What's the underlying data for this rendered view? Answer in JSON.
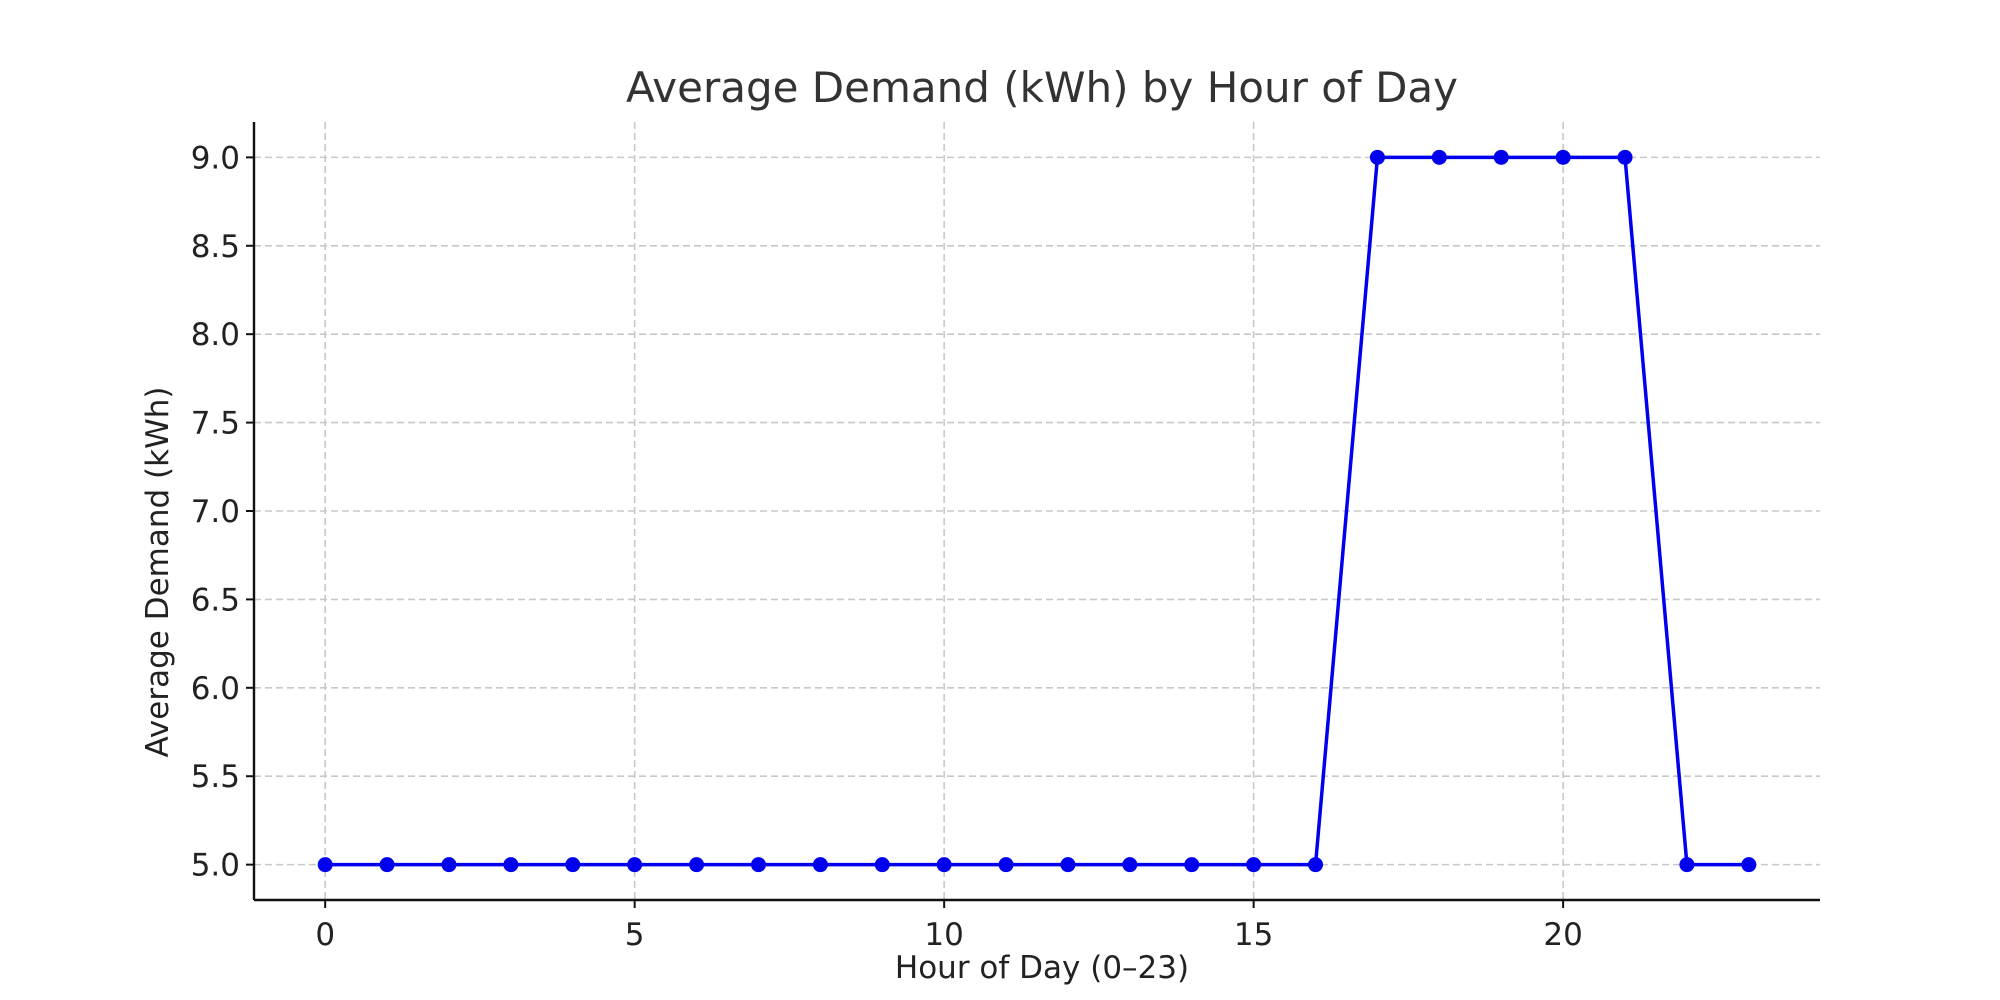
{
  "chart_data": {
    "type": "line",
    "title": "Average Demand (kWh) by Hour of Day",
    "xlabel": "Hour of Day (0–23)",
    "ylabel": "Average Demand (kWh)",
    "x": [
      0,
      1,
      2,
      3,
      4,
      5,
      6,
      7,
      8,
      9,
      10,
      11,
      12,
      13,
      14,
      15,
      16,
      17,
      18,
      19,
      20,
      21,
      22,
      23
    ],
    "series": [
      {
        "values": [
          5.0,
          5.0,
          5.0,
          5.0,
          5.0,
          5.0,
          5.0,
          5.0,
          5.0,
          5.0,
          5.0,
          5.0,
          5.0,
          5.0,
          5.0,
          5.0,
          5.0,
          9.0,
          9.0,
          9.0,
          9.0,
          9.0,
          5.0,
          5.0
        ],
        "color": "#0000ee",
        "marker": "circle"
      }
    ],
    "xlim": [
      -1.15,
      24.15
    ],
    "ylim": [
      4.8,
      9.2
    ],
    "xticks": [
      0,
      5,
      10,
      15,
      20
    ],
    "xtick_labels": [
      "0",
      "5",
      "10",
      "15",
      "20"
    ],
    "yticks": [
      5.0,
      5.5,
      6.0,
      6.5,
      7.0,
      7.5,
      8.0,
      8.5,
      9.0
    ],
    "ytick_labels": [
      "5.0",
      "5.5",
      "6.0",
      "6.5",
      "7.0",
      "7.5",
      "8.0",
      "8.5",
      "9.0"
    ],
    "grid": true,
    "legend": "none"
  }
}
